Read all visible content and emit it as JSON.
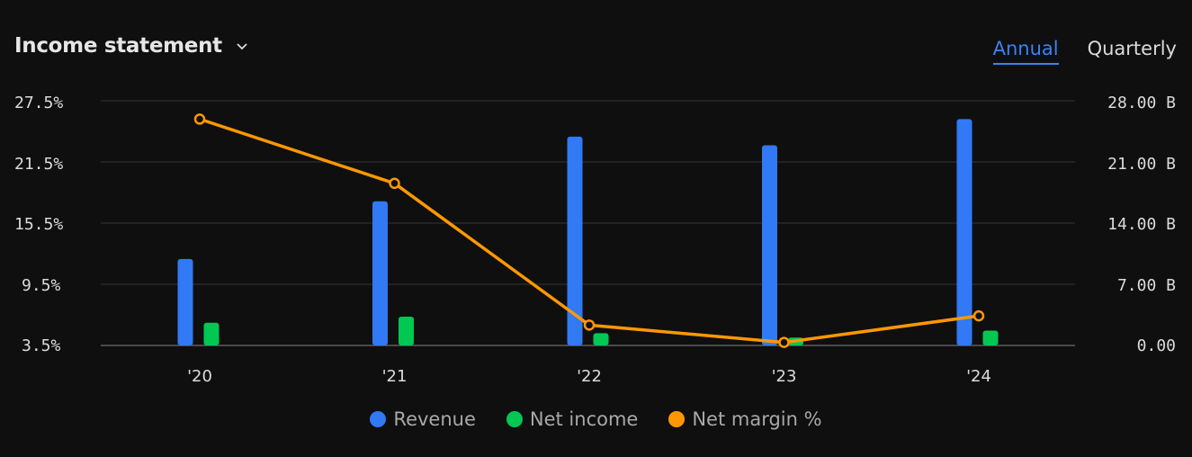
{
  "header": {
    "title": "Income statement",
    "dropdown_icon": "chevron-down-icon"
  },
  "tabs": [
    {
      "label": "Annual",
      "active": true
    },
    {
      "label": "Quarterly",
      "active": false
    }
  ],
  "colors": {
    "revenue": "#3179f5",
    "net_income": "#00c853",
    "net_margin": "#ff9800",
    "grid": "#2e2e2e"
  },
  "legend": [
    {
      "label": "Revenue",
      "color": "#3179f5"
    },
    {
      "label": "Net income",
      "color": "#00c853"
    },
    {
      "label": "Net margin %",
      "color": "#ff9800"
    }
  ],
  "chart_data": {
    "type": "bar",
    "categories": [
      "'20",
      "'21",
      "'22",
      "'23",
      "'24"
    ],
    "left_axis": {
      "ticks": [
        "27.5%",
        "21.5%",
        "15.5%",
        "9.5%",
        "3.5%"
      ],
      "range": [
        3.5,
        27.5
      ]
    },
    "right_axis": {
      "ticks": [
        "28.00 B",
        "21.00 B",
        "14.00 B",
        "7.00 B",
        "0.00"
      ],
      "range": [
        0,
        28
      ]
    },
    "series": [
      {
        "name": "Revenue",
        "type": "bar",
        "axis": "right",
        "values": [
          9.9,
          16.5,
          23.9,
          22.9,
          25.9
        ]
      },
      {
        "name": "Net income",
        "type": "bar",
        "axis": "right",
        "values": [
          2.6,
          3.3,
          1.4,
          0.9,
          1.7
        ]
      },
      {
        "name": "Net margin %",
        "type": "line",
        "axis": "left",
        "values": [
          25.7,
          19.4,
          5.5,
          3.8,
          6.4
        ]
      }
    ],
    "grid": true,
    "legend_position": "bottom"
  }
}
